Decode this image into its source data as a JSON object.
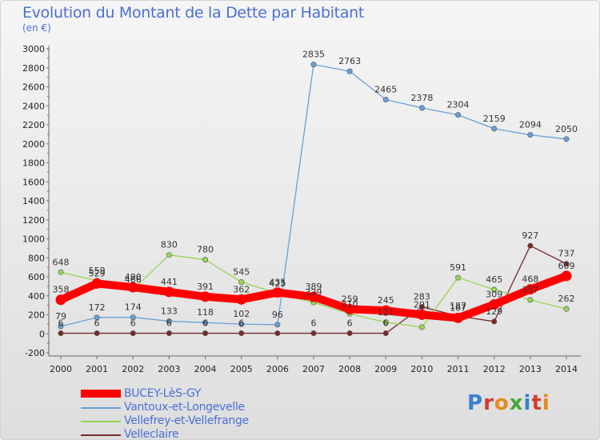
{
  "header": {
    "title": "Evolution du Montant de la Dette par Habitant",
    "unit": "(en €)"
  },
  "logo": {
    "text": "Proxiti"
  },
  "chart_data": {
    "type": "line",
    "title": "Evolution du Montant de la Dette par Habitant",
    "subtitle": "(en €)",
    "x": [
      2000,
      2001,
      2002,
      2003,
      2004,
      2005,
      2006,
      2007,
      2008,
      2009,
      2010,
      2011,
      2012,
      2013,
      2014
    ],
    "ylim": [
      -200,
      3000
    ],
    "yticks": [
      -200,
      0,
      200,
      400,
      600,
      800,
      1000,
      1200,
      1400,
      1600,
      1800,
      2000,
      2200,
      2400,
      2600,
      2800,
      3000
    ],
    "grid": false,
    "legend_position": "bottom-left",
    "series": [
      {
        "name": "BUCEY-LèS-GY",
        "color": "#ff0000",
        "values": [
          358,
          529,
          490,
          441,
          391,
          362,
          435,
          389,
          259,
          245,
          201,
          167,
          309,
          468,
          609
        ],
        "labels": [
          "358",
          "529",
          "490",
          "441",
          "391",
          "362",
          "435",
          "389",
          "259",
          "245",
          "201",
          "167",
          "309",
          "468",
          "609"
        ]
      },
      {
        "name": "Vantoux-et-Longevelle",
        "color": "#6a9fd6",
        "values": [
          79,
          172,
          174,
          133,
          118,
          102,
          96,
          2835,
          2763,
          2465,
          2378,
          2304,
          2159,
          2094,
          2050
        ],
        "labels": [
          "79",
          "172",
          "174",
          "133",
          "118",
          "102",
          "96",
          "2835",
          "2763",
          "2465",
          "2378",
          "2304",
          "2159",
          "2094",
          "2050"
        ]
      },
      {
        "name": "Vellefrey-et-Vellefrange",
        "color": "#98d654",
        "values": [
          648,
          559,
          466,
          830,
          780,
          545,
          425,
          329,
          210,
          121,
          70,
          591,
          465,
          357,
          262
        ],
        "labels": [
          "648",
          "559",
          "466",
          "830",
          "780",
          "545",
          "425",
          "329",
          "210",
          "121",
          "",
          "591",
          "465",
          "357",
          "262"
        ]
      },
      {
        "name": "Velleclaire",
        "color": "#7a2a2a",
        "values": [
          6,
          6,
          6,
          6,
          6,
          6,
          6,
          6,
          6,
          6,
          283,
          187,
          129,
          927,
          737
        ],
        "labels": [
          "6",
          "6",
          "6",
          "6",
          "6",
          "6",
          "",
          "6",
          "6",
          "6",
          "283",
          "187",
          "129",
          "927",
          "737"
        ]
      }
    ]
  }
}
